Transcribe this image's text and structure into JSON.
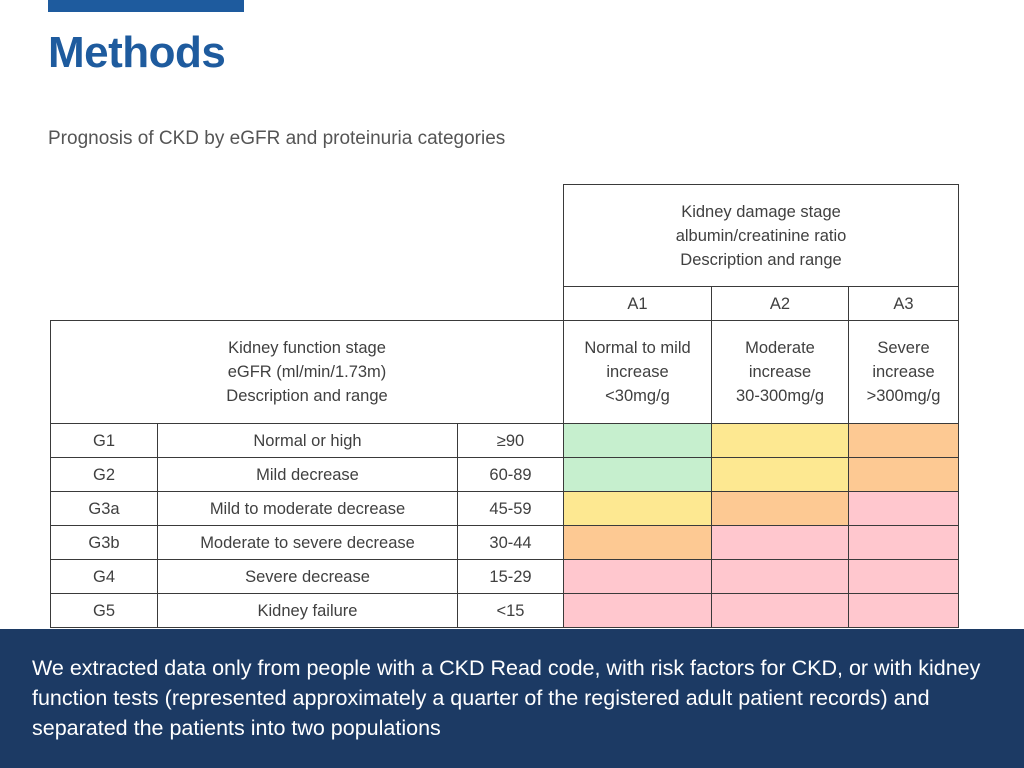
{
  "slide": {
    "title": "Methods",
    "subtitle": "Prognosis of CKD by eGFR and proteinuria categories",
    "accent_color": "#1e5b9e",
    "footer_color": "#1c3a64",
    "footer_text": "We extracted data only from people with a CKD Read code, with risk factors for CKD, or with kidney function tests (represented approximately a quarter of the registered adult patient records) and separated the patients into two populations"
  },
  "table": {
    "damage_header": [
      "Kidney damage stage",
      "albumin/creatinine ratio",
      "Description and range"
    ],
    "function_header": [
      "Kidney function stage",
      "eGFR (ml/min/1.73m)",
      "Description and range"
    ],
    "albumin_columns": [
      {
        "code": "A1",
        "desc": [
          "Normal to mild",
          "increase",
          "<30mg/g"
        ]
      },
      {
        "code": "A2",
        "desc": [
          "Moderate",
          "increase",
          "30-300mg/g"
        ]
      },
      {
        "code": "A3",
        "desc": [
          "Severe",
          "increase",
          ">300mg/g"
        ]
      }
    ],
    "rows": [
      {
        "stage": "G1",
        "description": "Normal or high",
        "range": "≥90",
        "risk": [
          "green",
          "yellow",
          "orange"
        ]
      },
      {
        "stage": "G2",
        "description": "Mild decrease",
        "range": "60-89",
        "risk": [
          "green",
          "yellow",
          "orange"
        ]
      },
      {
        "stage": "G3a",
        "description": "Mild to moderate decrease",
        "range": "45-59",
        "risk": [
          "yellow",
          "orange",
          "pink"
        ]
      },
      {
        "stage": "G3b",
        "description": "Moderate to severe decrease",
        "range": "30-44",
        "risk": [
          "orange",
          "pink",
          "pink"
        ]
      },
      {
        "stage": "G4",
        "description": "Severe decrease",
        "range": "15-29",
        "risk": [
          "pink",
          "pink",
          "pink"
        ]
      },
      {
        "stage": "G5",
        "description": "Kidney failure",
        "range": "<15",
        "risk": [
          "pink",
          "pink",
          "pink"
        ]
      }
    ],
    "risk_colors": {
      "green": "#c6efce",
      "yellow": "#fde891",
      "orange": "#fdc993",
      "pink": "#ffc7ce"
    }
  }
}
